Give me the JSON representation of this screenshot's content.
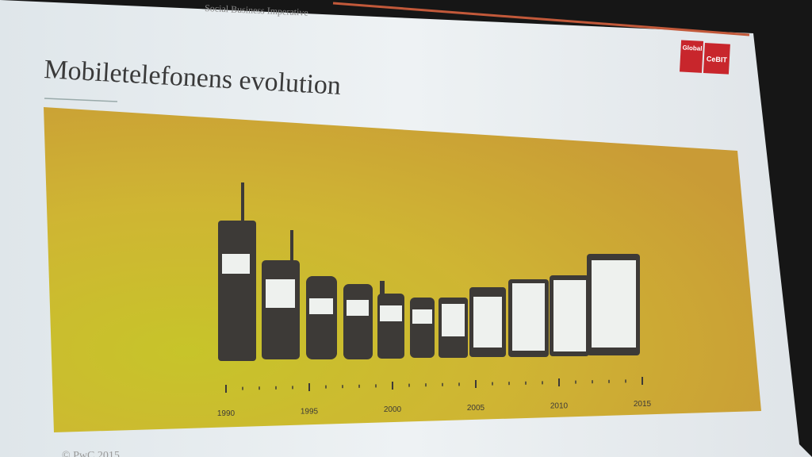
{
  "header": {
    "running_title": "Social Business Imperative",
    "logo_top": "Global",
    "logo_right": "CeBIT"
  },
  "slide": {
    "title": "Mobiletelefonens evolution",
    "footer": "© PwC 2015"
  },
  "timeline": {
    "years": [
      "1990",
      "1995",
      "2000",
      "2005",
      "2010",
      "2015"
    ]
  }
}
